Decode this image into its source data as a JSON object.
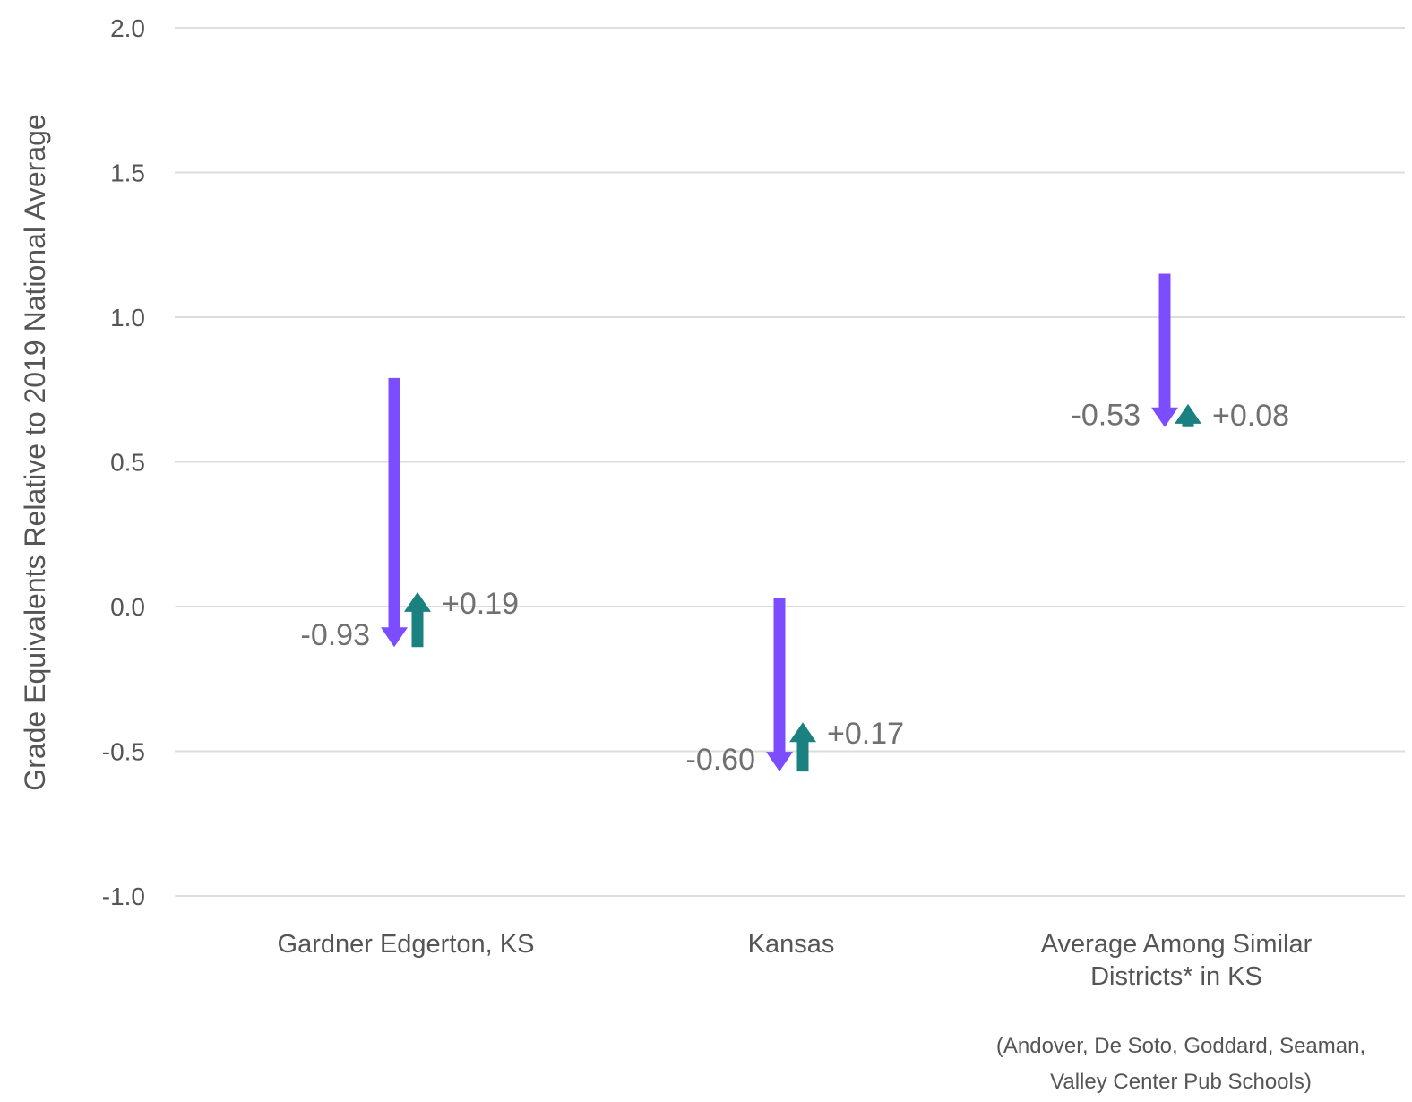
{
  "chart_data": {
    "type": "arrow",
    "ylabel": "Grade Equivalents Relative to 2019 National Average",
    "ylim": [
      -1.0,
      2.0
    ],
    "yticks": [
      "2.0",
      "1.5",
      "1.0",
      "0.5",
      "0.0",
      "-0.5",
      "-1.0"
    ],
    "ytick_values": [
      2.0,
      1.5,
      1.0,
      0.5,
      0.0,
      -0.5,
      -1.0
    ],
    "grid": true,
    "categories": [
      {
        "lines": [
          "Gardner Edgerton, KS"
        ]
      },
      {
        "lines": [
          "Kansas"
        ]
      },
      {
        "lines": [
          "Average Among Similar",
          "Districts* in KS"
        ]
      }
    ],
    "series": [
      {
        "start": [
          0.79,
          0.03,
          1.15
        ],
        "change": [
          -0.93,
          -0.6,
          -0.53
        ],
        "labels": [
          "-0.93",
          "-0.60",
          "-0.53"
        ],
        "color": "#7c4dff"
      },
      {
        "change": [
          0.19,
          0.17,
          0.08
        ],
        "labels": [
          "+0.19",
          "+0.17",
          "+0.08"
        ],
        "color": "#1a8080"
      }
    ],
    "footnote": [
      "(Andover, De Soto, Goddard, Seaman,",
      "Valley Center Pub Schools)"
    ]
  }
}
